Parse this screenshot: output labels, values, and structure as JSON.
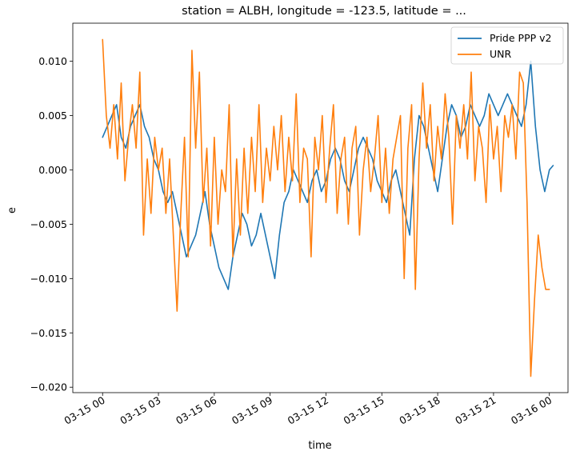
{
  "chart_data": {
    "type": "line",
    "title": "station = ALBH, longitude = -123.5, latitude = ...",
    "xlabel": "time",
    "ylabel": "e",
    "xlim_hours": [
      -1.6,
      25.0
    ],
    "ylim": [
      -0.0205,
      0.0135
    ],
    "x_tick_values": [
      0,
      3,
      6,
      9,
      12,
      15,
      18,
      21,
      24
    ],
    "x_tick_labels": [
      "03-15 00",
      "03-15 03",
      "03-15 06",
      "03-15 09",
      "03-15 12",
      "03-15 15",
      "03-15 18",
      "03-15 21",
      "03-16 00"
    ],
    "y_tick_values": [
      -0.02,
      -0.015,
      -0.01,
      -0.005,
      0.0,
      0.005,
      0.01
    ],
    "y_tick_labels": [
      "−0.020",
      "−0.015",
      "−0.010",
      "−0.005",
      "0.000",
      "0.005",
      "0.010"
    ],
    "grid": false,
    "legend_position": "top-right",
    "series": [
      {
        "name": "Pride PPP v2",
        "color": "#1f77b4",
        "x": [
          0.0,
          0.25,
          0.5,
          0.75,
          1.0,
          1.25,
          1.5,
          1.75,
          2.0,
          2.25,
          2.5,
          2.75,
          3.0,
          3.25,
          3.5,
          3.75,
          4.0,
          4.25,
          4.5,
          4.75,
          5.0,
          5.25,
          5.5,
          5.75,
          6.0,
          6.25,
          6.5,
          6.75,
          7.0,
          7.25,
          7.5,
          7.75,
          8.0,
          8.25,
          8.5,
          8.75,
          9.0,
          9.25,
          9.5,
          9.75,
          10.0,
          10.25,
          10.5,
          10.75,
          11.0,
          11.25,
          11.5,
          11.75,
          12.0,
          12.25,
          12.5,
          12.75,
          13.0,
          13.25,
          13.5,
          13.75,
          14.0,
          14.25,
          14.5,
          14.75,
          15.0,
          15.25,
          15.5,
          15.75,
          16.0,
          16.25,
          16.5,
          16.75,
          17.0,
          17.25,
          17.5,
          17.75,
          18.0,
          18.25,
          18.5,
          18.75,
          19.0,
          19.25,
          19.5,
          19.75,
          20.0,
          20.25,
          20.5,
          20.75,
          21.0,
          21.25,
          21.5,
          21.75,
          22.0,
          22.25,
          22.5,
          22.75,
          23.0,
          23.25,
          23.5,
          23.75,
          24.0
        ],
        "values": [
          0.003,
          0.004,
          0.005,
          0.006,
          0.003,
          0.002,
          0.004,
          0.005,
          0.006,
          0.004,
          0.003,
          0.001,
          0.0,
          -0.002,
          -0.003,
          -0.002,
          -0.004,
          -0.006,
          -0.008,
          -0.007,
          -0.006,
          -0.004,
          -0.002,
          -0.005,
          -0.007,
          -0.009,
          -0.01,
          -0.011,
          -0.008,
          -0.006,
          -0.004,
          -0.005,
          -0.007,
          -0.006,
          -0.004,
          -0.006,
          -0.008,
          -0.01,
          -0.006,
          -0.003,
          -0.002,
          0.0,
          -0.001,
          -0.002,
          -0.003,
          -0.001,
          0.0,
          -0.002,
          -0.001,
          0.001,
          0.002,
          0.001,
          -0.001,
          -0.002,
          0.0,
          0.002,
          0.003,
          0.002,
          0.001,
          -0.001,
          -0.002,
          -0.003,
          -0.001,
          0.0,
          -0.002,
          -0.004,
          -0.006,
          0.001,
          0.005,
          0.004,
          0.002,
          0.0,
          -0.002,
          0.001,
          0.004,
          0.006,
          0.005,
          0.003,
          0.004,
          0.006,
          0.005,
          0.004,
          0.005,
          0.007,
          0.006,
          0.005,
          0.006,
          0.007,
          0.006,
          0.005,
          0.004,
          0.006,
          0.01,
          0.004,
          0.0,
          -0.002,
          0.0
        ],
        "extra_x": [
          24.1,
          24.2
        ],
        "extra_values": [
          0.0002,
          0.0004
        ]
      },
      {
        "name": "UNR",
        "color": "#ff7f0e",
        "x": [
          0.0,
          0.2,
          0.4,
          0.6,
          0.8,
          1.0,
          1.2,
          1.4,
          1.6,
          1.8,
          2.0,
          2.2,
          2.4,
          2.6,
          2.8,
          3.0,
          3.2,
          3.4,
          3.6,
          3.8,
          4.0,
          4.2,
          4.4,
          4.6,
          4.8,
          5.0,
          5.2,
          5.4,
          5.6,
          5.8,
          6.0,
          6.2,
          6.4,
          6.6,
          6.8,
          7.0,
          7.2,
          7.4,
          7.6,
          7.8,
          8.0,
          8.2,
          8.4,
          8.6,
          8.8,
          9.0,
          9.2,
          9.4,
          9.6,
          9.8,
          10.0,
          10.2,
          10.4,
          10.6,
          10.8,
          11.0,
          11.2,
          11.4,
          11.6,
          11.8,
          12.0,
          12.2,
          12.4,
          12.6,
          12.8,
          13.0,
          13.2,
          13.4,
          13.6,
          13.8,
          14.0,
          14.2,
          14.4,
          14.6,
          14.8,
          15.0,
          15.2,
          15.4,
          15.6,
          15.8,
          16.0,
          16.2,
          16.4,
          16.6,
          16.8,
          17.0,
          17.2,
          17.4,
          17.6,
          17.8,
          18.0,
          18.2,
          18.4,
          18.6,
          18.8,
          19.0,
          19.2,
          19.4,
          19.6,
          19.8,
          20.0,
          20.2,
          20.4,
          20.6,
          20.8,
          21.0,
          21.2,
          21.4,
          21.6,
          21.8,
          22.0,
          22.2,
          22.4,
          22.6,
          22.8,
          23.0,
          23.2,
          23.4,
          23.6,
          23.8,
          24.0
        ],
        "values": [
          0.012,
          0.005,
          0.002,
          0.006,
          0.001,
          0.008,
          -0.001,
          0.003,
          0.006,
          0.002,
          0.009,
          -0.006,
          0.001,
          -0.004,
          0.003,
          0.0,
          0.002,
          -0.004,
          0.001,
          -0.006,
          -0.013,
          -0.004,
          0.003,
          -0.008,
          0.011,
          0.002,
          0.009,
          -0.003,
          0.002,
          -0.007,
          0.003,
          -0.005,
          0.0,
          -0.002,
          0.006,
          -0.008,
          0.001,
          -0.006,
          0.002,
          -0.004,
          0.003,
          -0.002,
          0.006,
          -0.003,
          0.002,
          -0.001,
          0.004,
          0.0,
          0.005,
          -0.002,
          0.003,
          -0.001,
          0.007,
          -0.003,
          0.002,
          0.001,
          -0.008,
          0.003,
          0.0,
          0.005,
          -0.003,
          0.002,
          0.006,
          -0.004,
          0.001,
          0.003,
          -0.005,
          0.002,
          0.004,
          -0.006,
          0.0,
          0.003,
          -0.002,
          0.001,
          0.005,
          -0.003,
          0.002,
          -0.004,
          0.001,
          0.003,
          0.005,
          -0.01,
          0.002,
          0.006,
          -0.011,
          0.001,
          0.008,
          0.002,
          0.006,
          -0.001,
          0.004,
          0.001,
          0.007,
          0.003,
          -0.005,
          0.005,
          0.002,
          0.006,
          0.001,
          0.009,
          -0.001,
          0.004,
          0.002,
          -0.003,
          0.006,
          0.001,
          0.004,
          -0.002,
          0.005,
          0.003,
          0.006,
          0.001,
          0.009,
          0.008,
          -0.003,
          -0.019,
          -0.012,
          -0.006,
          -0.009,
          -0.011,
          -0.011
        ],
        "extra_x": [],
        "extra_values": []
      }
    ]
  }
}
